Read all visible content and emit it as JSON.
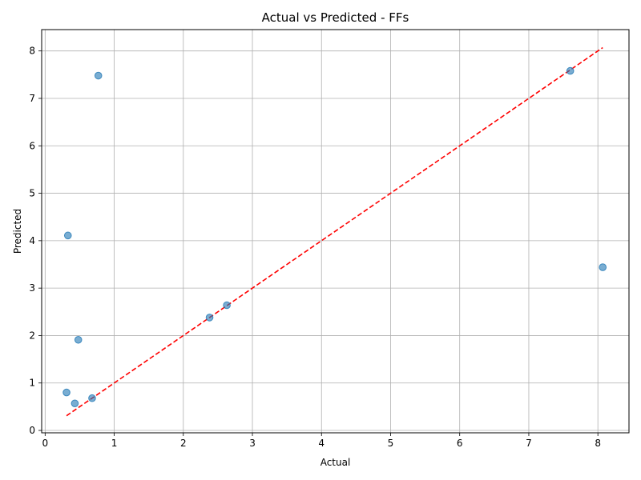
{
  "chart_data": {
    "type": "scatter",
    "title": "Actual vs Predicted - FFs",
    "xlabel": "Actual",
    "ylabel": "Predicted",
    "xlim": [
      -0.05,
      8.45
    ],
    "ylim": [
      -0.05,
      8.45
    ],
    "xticks": [
      0,
      1,
      2,
      3,
      4,
      5,
      6,
      7,
      8
    ],
    "yticks": [
      0,
      1,
      2,
      3,
      4,
      5,
      6,
      7,
      8
    ],
    "grid": true,
    "series": [
      {
        "kind": "points",
        "color": "#1f77b4",
        "x": [
          0.77,
          7.6,
          8.07,
          0.33,
          2.38,
          2.63,
          0.48,
          0.31,
          0.43,
          0.68
        ],
        "y": [
          7.48,
          7.58,
          3.44,
          4.11,
          2.38,
          2.64,
          1.91,
          0.8,
          0.57,
          0.68
        ]
      },
      {
        "kind": "reference-line",
        "color": "#ff0000",
        "x": [
          0.31,
          8.07
        ],
        "y": [
          0.31,
          8.07
        ]
      }
    ]
  }
}
